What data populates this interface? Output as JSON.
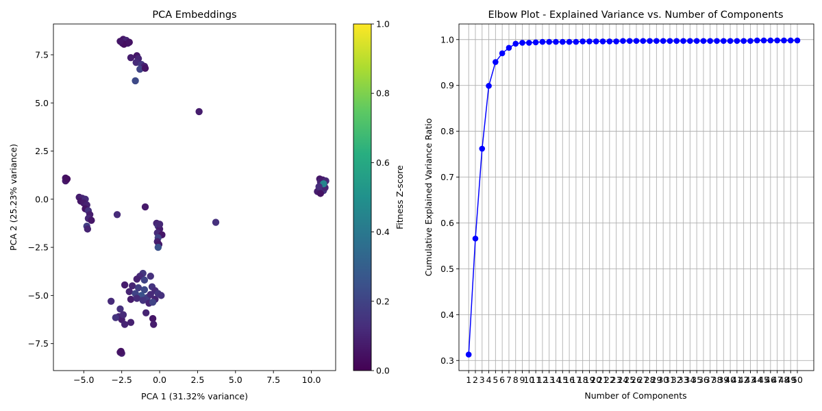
{
  "chart_data": [
    {
      "type": "scatter",
      "title": "PCA Embeddings",
      "xlabel": "PCA 1 (31.32% variance)",
      "ylabel": "PCA 2 (25.23% variance)",
      "xlim": [
        -7.0,
        11.6
      ],
      "ylim": [
        -8.9,
        9.1
      ],
      "xticks": [
        -5.0,
        -2.5,
        0.0,
        2.5,
        5.0,
        7.5,
        10.0
      ],
      "xtick_labels": [
        "−5.0",
        "−2.5",
        "0.0",
        "2.5",
        "5.0",
        "7.5",
        "10.0"
      ],
      "yticks": [
        -7.5,
        -5.0,
        -2.5,
        0.0,
        2.5,
        5.0,
        7.5
      ],
      "ytick_labels": [
        "−7.5",
        "−5.0",
        "−2.5",
        "0.0",
        "2.5",
        "5.0",
        "7.5"
      ],
      "grid": false,
      "colormap": "viridis",
      "colorbar": {
        "label": "Fitness Z-score",
        "range": [
          0.0,
          1.0
        ],
        "ticks": [
          0.0,
          0.2,
          0.4,
          0.6,
          0.8,
          1.0
        ],
        "tick_labels": [
          "0.0",
          "0.2",
          "0.4",
          "0.6",
          "0.8",
          "1.0"
        ]
      },
      "points": [
        [
          -2.4,
          8.3,
          0.06
        ],
        [
          -2.3,
          8.2,
          0.08
        ],
        [
          -2.5,
          8.15,
          0.05
        ],
        [
          -2.2,
          8.25,
          0.1
        ],
        [
          -2.45,
          8.1,
          0.07
        ],
        [
          -2.1,
          8.1,
          0.09
        ],
        [
          -2.35,
          8.05,
          0.04
        ],
        [
          -2.6,
          8.2,
          0.06
        ],
        [
          -2.0,
          8.15,
          0.05
        ],
        [
          -1.9,
          7.35,
          0.08
        ],
        [
          -1.5,
          7.45,
          0.06
        ],
        [
          -1.4,
          7.3,
          0.1
        ],
        [
          -1.55,
          7.1,
          0.12
        ],
        [
          -1.2,
          7.0,
          0.16
        ],
        [
          -1.0,
          6.9,
          0.09
        ],
        [
          -1.3,
          6.75,
          0.2
        ],
        [
          -0.95,
          6.8,
          0.05
        ],
        [
          -1.6,
          6.15,
          0.22
        ],
        [
          2.6,
          4.55,
          0.08
        ],
        [
          -6.2,
          1.1,
          0.05
        ],
        [
          -6.15,
          1.0,
          0.06
        ],
        [
          -6.2,
          0.95,
          0.07
        ],
        [
          -6.1,
          1.05,
          0.04
        ],
        [
          -5.3,
          0.1,
          0.08
        ],
        [
          -5.1,
          0.05,
          0.1
        ],
        [
          -5.2,
          -0.1,
          0.06
        ],
        [
          -4.9,
          0.0,
          0.12
        ],
        [
          -5.0,
          -0.2,
          0.07
        ],
        [
          -4.8,
          -0.3,
          0.09
        ],
        [
          -4.9,
          -0.5,
          0.05
        ],
        [
          -4.7,
          -0.6,
          0.14
        ],
        [
          -4.6,
          -0.8,
          0.08
        ],
        [
          -4.7,
          -1.0,
          0.11
        ],
        [
          -4.5,
          -1.1,
          0.06
        ],
        [
          -4.8,
          -1.4,
          0.18
        ],
        [
          -4.75,
          -1.55,
          0.1
        ],
        [
          -2.8,
          -0.8,
          0.12
        ],
        [
          -0.95,
          -0.4,
          0.07
        ],
        [
          3.7,
          -1.2,
          0.14
        ],
        [
          -0.2,
          -1.25,
          0.1
        ],
        [
          -0.1,
          -1.4,
          0.15
        ],
        [
          0.0,
          -1.55,
          0.08
        ],
        [
          -0.15,
          -1.75,
          0.12
        ],
        [
          0.15,
          -1.85,
          0.06
        ],
        [
          -0.1,
          -2.0,
          0.2
        ],
        [
          -0.15,
          -2.2,
          0.09
        ],
        [
          -0.05,
          -2.35,
          0.07
        ],
        [
          -0.1,
          -2.5,
          0.25
        ],
        [
          0.0,
          -1.3,
          0.11
        ],
        [
          10.4,
          0.4,
          0.08
        ],
        [
          10.55,
          1.05,
          0.06
        ],
        [
          10.6,
          0.9,
          0.1
        ],
        [
          10.65,
          0.7,
          0.12
        ],
        [
          10.7,
          0.55,
          0.08
        ],
        [
          10.8,
          0.45,
          0.15
        ],
        [
          10.9,
          0.6,
          0.1
        ],
        [
          10.75,
          1.0,
          0.07
        ],
        [
          10.85,
          0.85,
          0.09
        ],
        [
          10.6,
          0.3,
          0.05
        ],
        [
          10.95,
          0.95,
          0.11
        ],
        [
          10.8,
          0.8,
          0.45
        ],
        [
          10.5,
          0.65,
          0.13
        ],
        [
          -1.1,
          -3.85,
          0.16
        ],
        [
          -1.3,
          -4.0,
          0.12
        ],
        [
          -1.5,
          -4.15,
          0.09
        ],
        [
          -1.0,
          -4.2,
          0.2
        ],
        [
          -0.6,
          -4.0,
          0.14
        ],
        [
          -2.3,
          -4.45,
          0.08
        ],
        [
          -1.8,
          -4.5,
          0.1
        ],
        [
          -1.4,
          -4.6,
          0.18
        ],
        [
          -1.0,
          -4.7,
          0.22
        ],
        [
          -0.5,
          -4.55,
          0.15
        ],
        [
          -0.3,
          -4.75,
          0.12
        ],
        [
          -2.0,
          -4.8,
          0.1
        ],
        [
          -1.6,
          -4.9,
          0.2
        ],
        [
          -1.2,
          -5.0,
          0.25
        ],
        [
          -0.8,
          -5.1,
          0.18
        ],
        [
          -0.6,
          -4.95,
          0.12
        ],
        [
          -0.3,
          -5.2,
          0.1
        ],
        [
          -0.1,
          -4.9,
          0.16
        ],
        [
          0.1,
          -5.0,
          0.14
        ],
        [
          -1.9,
          -5.2,
          0.08
        ],
        [
          -1.5,
          -5.15,
          0.12
        ],
        [
          -1.1,
          -5.25,
          0.15
        ],
        [
          -0.7,
          -5.4,
          0.1
        ],
        [
          -0.45,
          -5.35,
          0.2
        ],
        [
          -3.2,
          -5.3,
          0.12
        ],
        [
          -2.6,
          -5.7,
          0.14
        ],
        [
          -2.7,
          -6.1,
          0.1
        ],
        [
          -2.5,
          -6.25,
          0.08
        ],
        [
          -2.4,
          -6.0,
          0.12
        ],
        [
          -2.3,
          -6.5,
          0.1
        ],
        [
          -2.9,
          -6.15,
          0.15
        ],
        [
          -1.9,
          -6.4,
          0.09
        ],
        [
          -0.9,
          -5.9,
          0.1
        ],
        [
          -0.45,
          -6.2,
          0.06
        ],
        [
          -0.4,
          -6.5,
          0.08
        ],
        [
          -2.6,
          -7.95,
          0.06
        ],
        [
          -2.5,
          -8.0,
          0.08
        ],
        [
          -2.55,
          -7.9,
          0.05
        ]
      ]
    },
    {
      "type": "line",
      "title": "Elbow Plot - Explained Variance vs. Number of Components",
      "xlabel": "Number of Components",
      "ylabel": "Cumulative Explained Variance Ratio",
      "xlim": [
        -0.45,
        52.45
      ],
      "ylim": [
        0.278,
        1.034
      ],
      "yticks": [
        0.3,
        0.4,
        0.5,
        0.6,
        0.7,
        0.8,
        0.9,
        1.0
      ],
      "ytick_labels": [
        "0.3",
        "0.4",
        "0.5",
        "0.6",
        "0.7",
        "0.8",
        "0.9",
        "1.0"
      ],
      "grid": true,
      "color": "#0000ff",
      "marker": "circle",
      "x": [
        1,
        2,
        3,
        4,
        5,
        6,
        7,
        8,
        9,
        10,
        11,
        12,
        13,
        14,
        15,
        16,
        17,
        18,
        19,
        20,
        21,
        22,
        23,
        24,
        25,
        26,
        27,
        28,
        29,
        30,
        31,
        32,
        33,
        34,
        35,
        36,
        37,
        38,
        39,
        40,
        41,
        42,
        43,
        44,
        45,
        46,
        47,
        48,
        49,
        50
      ],
      "xtick_labels": [
        "1",
        "2",
        "3",
        "4",
        "5",
        "6",
        "7",
        "8",
        "9",
        "10",
        "11",
        "12",
        "13",
        "14",
        "15",
        "16",
        "17",
        "18",
        "19",
        "20",
        "21",
        "22",
        "23",
        "24",
        "25",
        "26",
        "27",
        "28",
        "29",
        "30",
        "31",
        "32",
        "33",
        "34",
        "35",
        "36",
        "37",
        "38",
        "39",
        "40",
        "41",
        "42",
        "43",
        "44",
        "45",
        "46",
        "47",
        "48",
        "49",
        "50"
      ],
      "y": [
        0.313,
        0.566,
        0.762,
        0.899,
        0.951,
        0.97,
        0.982,
        0.991,
        0.993,
        0.993,
        0.994,
        0.995,
        0.995,
        0.995,
        0.995,
        0.995,
        0.995,
        0.996,
        0.996,
        0.996,
        0.996,
        0.996,
        0.996,
        0.997,
        0.997,
        0.997,
        0.997,
        0.997,
        0.997,
        0.997,
        0.997,
        0.997,
        0.997,
        0.997,
        0.997,
        0.997,
        0.997,
        0.997,
        0.997,
        0.997,
        0.997,
        0.997,
        0.997,
        0.998,
        0.998,
        0.998,
        0.998,
        0.998,
        0.998,
        0.998
      ]
    }
  ]
}
